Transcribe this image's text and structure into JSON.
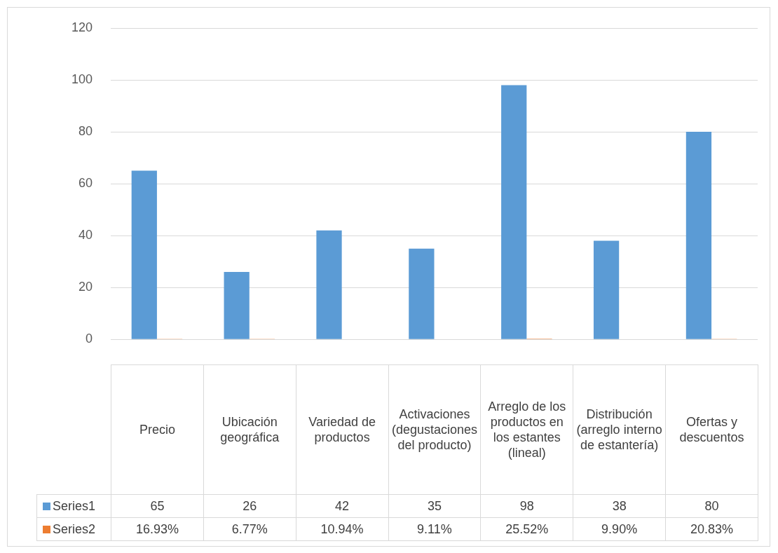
{
  "chart_data": {
    "type": "bar",
    "categories": [
      "Precio",
      "Ubicación geográfica",
      "Variedad de productos",
      "Activaciones (degustaciones del producto)",
      "Arreglo de los productos en los estantes (lineal)",
      "Distribución (arreglo interno de estantería)",
      "Ofertas y descuentos"
    ],
    "series": [
      {
        "name": "Series1",
        "color": "#5b9bd5",
        "values": [
          65,
          26,
          42,
          35,
          98,
          38,
          80
        ],
        "value_labels": [
          "65",
          "26",
          "42",
          "35",
          "98",
          "38",
          "80"
        ]
      },
      {
        "name": "Series2",
        "color": "#ed7d31",
        "values": [
          0.1693,
          0.0677,
          0.1094,
          0.0911,
          0.2552,
          0.099,
          0.2083
        ],
        "value_labels": [
          "16.93%",
          "6.77%",
          "10.94%",
          "9.11%",
          "25.52%",
          "9.90%",
          "20.83%"
        ]
      }
    ],
    "ylim": [
      0,
      120
    ],
    "yticks": [
      0,
      20,
      40,
      60,
      80,
      100,
      120
    ],
    "grid": "y",
    "legend": "bottom"
  }
}
